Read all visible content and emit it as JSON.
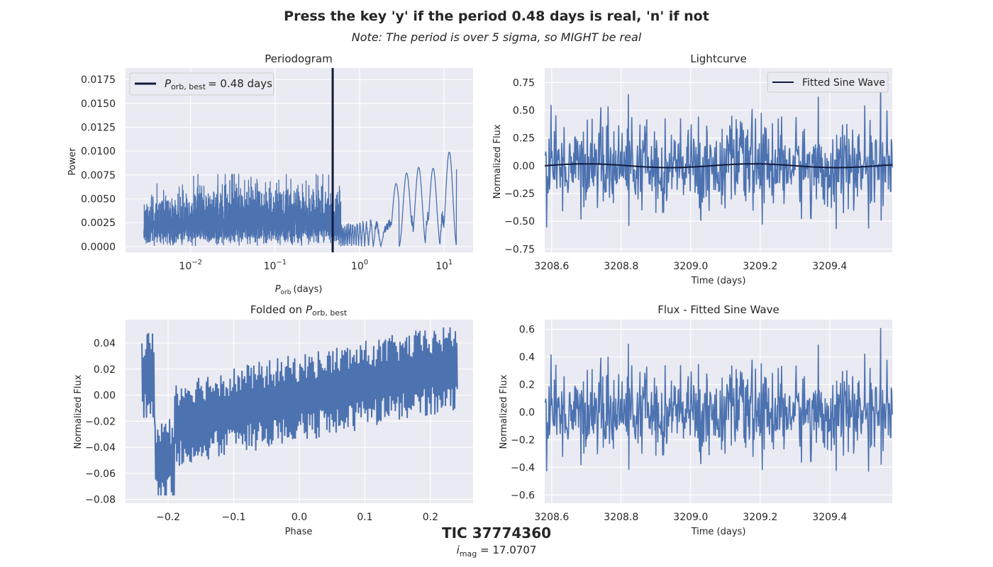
{
  "figure": {
    "title": "Press the key 'y' if the period 0.48 days is real, 'n' if not",
    "subtitle": "Note: The period is over 5 sigma, so MIGHT be real",
    "object_name": "TIC 37774360",
    "magnitude_label": "i_mag = 17.0707",
    "magnitude_symbol": "i",
    "magnitude_subscript": "mag",
    "magnitude_value": "= 17.0707"
  },
  "colors": {
    "background": "#eaeaf2",
    "grid": "#ffffff",
    "series": "#4c72b0",
    "fit_line": "#0f1a3c",
    "text": "#262626"
  },
  "chart_data": [
    {
      "id": "periodogram",
      "type": "line",
      "title": "Periodogram",
      "xlabel_symbol": "P",
      "xlabel_sub": "orb",
      "xlabel_rest": "(days)",
      "ylabel": "Power",
      "xscale": "log",
      "xlim": [
        0.0017,
        22
      ],
      "ylim": [
        -0.0006,
        0.0187
      ],
      "xticks": [
        0.01,
        0.1,
        1,
        10
      ],
      "xtick_base": "10",
      "xtick_exps": [
        "−2",
        "−1",
        "0",
        "1"
      ],
      "yticks": [
        0.0,
        0.0025,
        0.005,
        0.0075,
        0.01,
        0.0125,
        0.015,
        0.0175
      ],
      "ytick_labels": [
        "0.0000",
        "0.0025",
        "0.0050",
        "0.0075",
        "0.0100",
        "0.0125",
        "0.0150",
        "0.0175"
      ],
      "x_range": [
        0.0028,
        14.0
      ],
      "best_period": 0.48,
      "legend_placement": "top-left",
      "legend_symbol": "P",
      "legend_sub": "orb, best",
      "legend_rest": "= 0.48 days",
      "peaks": [
        {
          "x": 2.7,
          "y": 0.0066
        },
        {
          "x": 3.6,
          "y": 0.0077
        },
        {
          "x": 5.0,
          "y": 0.0083
        },
        {
          "x": 7.4,
          "y": 0.0082
        },
        {
          "x": 11.5,
          "y": 0.0099
        }
      ]
    },
    {
      "id": "lightcurve",
      "type": "line",
      "title": "Lightcurve",
      "xlabel": "Time (days)",
      "ylabel": "Normalized Flux",
      "xlim": [
        3208.58,
        3209.58
      ],
      "ylim": [
        -0.78,
        0.88
      ],
      "xticks": [
        3208.6,
        3208.8,
        3209.0,
        3209.2,
        3209.4
      ],
      "xtick_labels": [
        "3208.6",
        "3208.8",
        "3209.0",
        "3209.2",
        "3209.4"
      ],
      "yticks": [
        -0.75,
        -0.5,
        -0.25,
        0.0,
        0.25,
        0.5,
        0.75
      ],
      "ytick_labels": [
        "−0.75",
        "−0.50",
        "−0.25",
        "0.00",
        "0.25",
        "0.50",
        "0.75"
      ],
      "legend_placement": "top-right",
      "series": [
        {
          "name": "",
          "noise_amplitude": 0.2,
          "max": 0.81,
          "min": -0.58
        },
        {
          "name": "Fitted Sine Wave",
          "amplitude": 0.017,
          "period_days": 0.48,
          "phase_peak_time": 3208.7
        }
      ]
    },
    {
      "id": "folded",
      "type": "line",
      "title_prefix": "Folded on",
      "title_symbol": "P",
      "title_sub": "orb, best",
      "xlabel": "Phase",
      "ylabel": "Normalized Flux",
      "xlim": [
        -0.265,
        0.265
      ],
      "ylim": [
        -0.083,
        0.058
      ],
      "xticks": [
        -0.2,
        -0.1,
        0.0,
        0.1,
        0.2
      ],
      "xtick_labels": [
        "−0.2",
        "−0.1",
        "0.0",
        "0.1",
        "0.2"
      ],
      "yticks": [
        -0.08,
        -0.06,
        -0.04,
        -0.02,
        0.0,
        0.02,
        0.04
      ],
      "ytick_labels": [
        "−0.08",
        "−0.06",
        "−0.04",
        "−0.02",
        "0.00",
        "0.02",
        "0.04"
      ],
      "phase_range": [
        -0.24,
        0.24
      ]
    },
    {
      "id": "residual",
      "type": "line",
      "title": "Flux - Fitted Sine Wave",
      "xlabel": "Time (days)",
      "ylabel": "Normalized Flux",
      "xlim": [
        3208.58,
        3209.58
      ],
      "ylim": [
        -0.66,
        0.67
      ],
      "xticks": [
        3208.6,
        3208.8,
        3209.0,
        3209.2,
        3209.4
      ],
      "xtick_labels": [
        "3208.6",
        "3208.8",
        "3209.0",
        "3209.2",
        "3209.4"
      ],
      "yticks": [
        -0.6,
        -0.4,
        -0.2,
        0.0,
        0.2,
        0.4,
        0.6
      ],
      "ytick_labels": [
        "−0.6",
        "−0.4",
        "−0.2",
        "0.0",
        "0.2",
        "0.4",
        "0.6"
      ],
      "noise_amplitude": 0.15,
      "max": 0.61,
      "min": -0.43
    }
  ]
}
